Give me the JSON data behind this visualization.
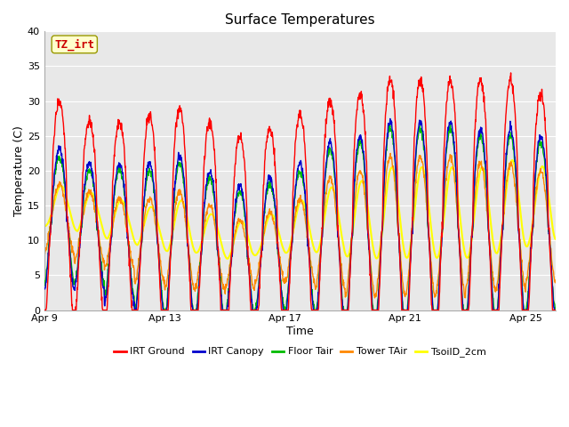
{
  "title": "Surface Temperatures",
  "xlabel": "Time",
  "ylabel": "Temperature (C)",
  "ylim": [
    0,
    40
  ],
  "n_days": 17,
  "x_ticks_days": [
    0,
    4,
    8,
    12,
    16
  ],
  "x_tick_labels": [
    "Apr 9",
    "Apr 13",
    "Apr 17",
    "Apr 21",
    "Apr 25"
  ],
  "y_ticks": [
    0,
    5,
    10,
    15,
    20,
    25,
    30,
    35,
    40
  ],
  "series_colors": {
    "IRT Ground": "#ff0000",
    "IRT Canopy": "#0000cc",
    "Floor Tair": "#00bb00",
    "Tower TAir": "#ff8800",
    "TsoilD_2cm": "#ffff00"
  },
  "legend_labels": [
    "IRT Ground",
    "IRT Canopy",
    "Floor Tair",
    "Tower TAir",
    "TsoilD_2cm"
  ],
  "annotation_text": "TZ_irt",
  "annotation_color": "#cc0000",
  "annotation_bg": "#ffffcc",
  "annotation_border": "#999900",
  "plot_bg": "#e8e8e8",
  "upper_band_color": "#e0e0e0",
  "grid_color": "#ffffff",
  "title_fontsize": 11,
  "label_fontsize": 9,
  "tick_fontsize": 8,
  "legend_fontsize": 8
}
